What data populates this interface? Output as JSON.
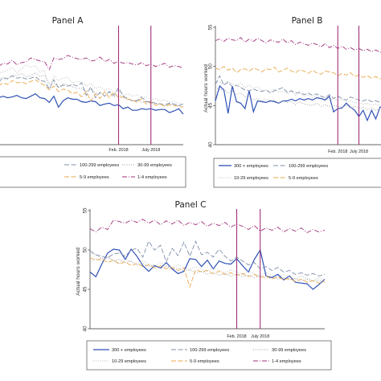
{
  "chart_data": [
    {
      "type": "line",
      "title": "Panel A",
      "ylabel": "",
      "ylim": [
        40,
        55
      ],
      "x_count": 41,
      "vlines": [
        {
          "x": 26,
          "label": "Feb. 2018"
        },
        {
          "x": 33,
          "label": "July 2018"
        }
      ],
      "series": [
        {
          "name": "300 + employees",
          "color": "#2d4fb5",
          "dash": "solid",
          "values": [
            46.0,
            46.2,
            46.0,
            46.1,
            46.3,
            46.0,
            45.9,
            46.2,
            46.5,
            46.0,
            45.9,
            45.4,
            46.2,
            44.8,
            45.6,
            46.0,
            45.8,
            45.8,
            45.5,
            45.4,
            45.6,
            45.5,
            45.0,
            45.2,
            45.3,
            45.0,
            45.1,
            44.6,
            44.8,
            44.4,
            44.4,
            44.6,
            44.5,
            44.6,
            44.4,
            44.5,
            44.5,
            44.1,
            44.3,
            44.6,
            43.9
          ]
        },
        {
          "name": "100-299 employees",
          "color": "#7f8fa8",
          "dash": "longdash",
          "values": [
            48.0,
            48.5,
            48.4,
            48.8,
            48.5,
            48.6,
            48.4,
            48.5,
            48.7,
            48.2,
            48.1,
            47.1,
            48.3,
            47.3,
            47.6,
            47.5,
            47.7,
            47.5,
            47.9,
            46.3,
            47.4,
            46.0,
            46.7,
            46.2,
            46.8,
            46.3,
            47.3,
            46.2,
            45.9,
            45.6,
            45.6,
            46.1,
            45.5,
            45.5,
            45.3,
            45.2,
            45.1,
            45.3,
            45.2,
            45.0,
            45.2
          ]
        },
        {
          "name": "30-99 employees",
          "color": "#999999",
          "dash": "dot",
          "values": [
            48.4,
            48.6,
            48.5,
            48.8,
            48.9,
            49.1,
            48.7,
            48.8,
            49.2,
            48.7,
            48.9,
            47.8,
            47.9,
            47.3,
            47.8,
            47.6,
            47.4,
            47.2,
            47.2,
            46.8,
            47.1,
            46.6,
            46.5,
            46.5,
            46.7,
            46.1,
            46.4,
            46.0,
            45.8,
            45.6,
            45.7,
            45.4,
            45.5,
            45.3,
            45.2,
            45.3,
            45.0,
            45.2,
            45.1,
            45.0,
            44.8
          ]
        },
        {
          "name": "10-29 employees",
          "color": "#b8b8b8",
          "dash": "dot",
          "values": [
            49.1,
            49.3,
            49.5,
            49.9,
            49.2,
            49.7,
            50.2,
            49.9,
            50.1,
            49.3,
            49.5,
            47.0,
            48.8,
            48.2,
            48.5,
            48.6,
            47.9,
            48.1,
            48.0,
            47.5,
            47.8,
            47.2,
            47.4,
            47.0,
            47.2,
            46.6,
            46.9,
            46.3,
            46.5,
            46.2,
            46.4,
            46.0,
            46.1,
            45.8,
            45.9,
            45.6,
            45.7,
            45.4,
            45.5,
            45.3,
            45.2
          ]
        },
        {
          "name": "5-9 employees",
          "color": "#e8a84d",
          "dash": "longdash",
          "values": [
            47.5,
            47.9,
            47.7,
            48.2,
            47.9,
            48.0,
            47.8,
            48.1,
            48.3,
            47.9,
            47.6,
            47.0,
            47.5,
            46.8,
            47.1,
            47.0,
            46.5,
            46.7,
            46.1,
            46.8,
            45.6,
            46.5,
            45.9,
            46.8,
            46.0,
            46.7,
            46.0,
            46.1,
            45.8,
            45.7,
            45.4,
            45.9,
            45.2,
            45.5,
            45.0,
            45.2,
            44.9,
            45.1,
            45.0,
            44.9,
            44.8
          ]
        },
        {
          "name": "1-4 employees",
          "color": "#a0307a",
          "dash": "dashdot",
          "values": [
            50.0,
            50.4,
            50.3,
            50.8,
            50.2,
            50.5,
            50.6,
            51.1,
            50.9,
            50.7,
            50.6,
            49.6,
            51.1,
            50.9,
            51.0,
            51.4,
            51.2,
            51.0,
            50.9,
            51.1,
            50.7,
            50.8,
            51.2,
            50.6,
            50.9,
            50.4,
            50.7,
            50.4,
            50.5,
            50.3,
            50.2,
            50.5,
            50.1,
            50.3,
            50.0,
            50.2,
            50.4,
            49.9,
            50.1,
            50.0,
            49.8
          ]
        }
      ]
    },
    {
      "type": "line",
      "title": "Panel B",
      "ylabel": "Actual hours worked",
      "ylim": [
        40,
        55
      ],
      "yticks": [
        40,
        45,
        50,
        55
      ],
      "x_count": 41,
      "vlines": [
        {
          "x": 29,
          "label": "Feb. 2018"
        },
        {
          "x": 34,
          "label": "July 2018"
        }
      ],
      "series": [
        {
          "name": "300 + employees",
          "color": "#2d4fb5",
          "dash": "solid",
          "values": [
            45.6,
            47.5,
            47.0,
            44.0,
            47.5,
            45.5,
            45.3,
            44.6,
            46.9,
            44.2,
            45.6,
            45.5,
            45.4,
            45.6,
            45.5,
            45.3,
            45.6,
            45.6,
            45.8,
            45.6,
            45.9,
            45.7,
            45.9,
            45.7,
            46.0,
            45.9,
            45.7,
            46.2,
            44.2,
            44.6,
            44.7,
            45.3,
            44.8,
            44.4,
            43.6,
            44.4,
            43.1,
            44.4,
            43.3,
            44.8,
            44.8
          ]
        },
        {
          "name": "100-299 employees",
          "color": "#7f8fa8",
          "dash": "longdash",
          "values": [
            47.7,
            48.8,
            47.6,
            48.0,
            47.4,
            47.6,
            47.3,
            47.0,
            46.9,
            47.1,
            46.9,
            46.8,
            47.0,
            46.6,
            46.9,
            47.1,
            47.3,
            46.7,
            46.9,
            46.6,
            46.7,
            46.4,
            46.6,
            46.3,
            46.5,
            46.2,
            46.0,
            46.4,
            45.9,
            46.2,
            45.9,
            45.7,
            46.1,
            45.9,
            45.7,
            45.6,
            45.8,
            45.5,
            45.6,
            45.4,
            45.5
          ]
        },
        {
          "name": "30-99 employees",
          "color": "#999999",
          "dash": "dot",
          "values": [
            47.4,
            47.0,
            47.1,
            46.6,
            46.9,
            46.4,
            46.6,
            46.1,
            46.2,
            45.7,
            45.9,
            45.6,
            45.8,
            45.6,
            45.7,
            45.3,
            45.6,
            45.4,
            45.5,
            45.1,
            45.5,
            45.2,
            45.1,
            45.0,
            45.3,
            44.9,
            45.1,
            44.9,
            45.0,
            44.9,
            44.8,
            45.0,
            44.7,
            44.9,
            44.6,
            44.8,
            44.5,
            44.7,
            44.4,
            44.6,
            44.4
          ]
        },
        {
          "name": "10-29 employees",
          "color": "#b8b8b8",
          "dash": "dot",
          "values": [
            48.2,
            48.0,
            47.7,
            48.1,
            47.8,
            47.5,
            47.9,
            47.3,
            47.6,
            47.2,
            47.4,
            46.9,
            47.0,
            46.8,
            47.1,
            46.7,
            46.9,
            46.5,
            46.8,
            46.3,
            46.6,
            46.2,
            46.4,
            46.0,
            46.3,
            45.9,
            46.1,
            45.7,
            45.9,
            45.6,
            45.8,
            45.5,
            45.6,
            45.3,
            45.4,
            45.2,
            45.3,
            45.0,
            45.2,
            44.9,
            45.1
          ]
        },
        {
          "name": "5-9 employees",
          "color": "#e8a84d",
          "dash": "longdash",
          "values": [
            49.8,
            49.6,
            50.0,
            49.5,
            49.8,
            49.2,
            49.6,
            49.7,
            49.4,
            49.8,
            49.6,
            49.3,
            49.7,
            49.6,
            49.9,
            49.3,
            49.5,
            49.8,
            49.4,
            49.2,
            49.6,
            49.4,
            49.1,
            49.5,
            49.2,
            49.0,
            49.4,
            49.3,
            49.2,
            48.8,
            49.1,
            48.9,
            49.2,
            48.7,
            48.9,
            48.6,
            48.8,
            48.5,
            48.7,
            48.4,
            48.6
          ]
        },
        {
          "name": "1-4 employees",
          "color": "#a0307a",
          "dash": "dashdot",
          "values": [
            53.3,
            53.5,
            53.2,
            53.6,
            53.4,
            53.3,
            53.7,
            53.1,
            53.5,
            53.2,
            53.6,
            53.3,
            53.0,
            53.4,
            53.2,
            53.1,
            53.5,
            53.0,
            53.3,
            52.8,
            53.1,
            52.9,
            52.7,
            53.0,
            52.8,
            52.5,
            52.9,
            52.4,
            52.7,
            52.3,
            52.6,
            52.2,
            52.4,
            52.1,
            52.3,
            52.0,
            52.2,
            51.9,
            52.1,
            51.8,
            52.0
          ]
        }
      ]
    },
    {
      "type": "line",
      "title": "Panel C",
      "ylabel": "Actual hours worked",
      "ylim": [
        40,
        55
      ],
      "yticks": [
        40,
        45,
        50,
        55
      ],
      "x_count": 41,
      "vlines": [
        {
          "x": 25,
          "label": "Feb. 2018"
        },
        {
          "x": 29,
          "label": "July 2018"
        }
      ],
      "series": [
        {
          "name": "300 + employees",
          "color": "#2d4fb5",
          "dash": "solid",
          "values": [
            47.2,
            46.6,
            48.2,
            49.6,
            50.1,
            50.0,
            48.8,
            50.1,
            49.2,
            48.0,
            47.3,
            48.0,
            47.7,
            48.4,
            47.6,
            47.0,
            47.3,
            48.9,
            48.8,
            47.9,
            48.7,
            47.6,
            48.6,
            48.3,
            48.2,
            48.9,
            48.0,
            47.2,
            48.8,
            50.0,
            46.7,
            46.5,
            46.9,
            46.2,
            46.7,
            45.9,
            45.8,
            45.7,
            45.0,
            45.6,
            46.3
          ]
        },
        {
          "name": "100-299 employees",
          "color": "#7f8fa8",
          "dash": "longdash",
          "values": [
            49.9,
            49.4,
            49.2,
            49.0,
            49.5,
            49.6,
            49.2,
            50.0,
            50.2,
            49.1,
            51.1,
            50.0,
            50.6,
            48.5,
            50.2,
            49.3,
            51.0,
            49.2,
            51.1,
            49.4,
            49.7,
            49.1,
            50.1,
            49.2,
            48.6,
            49.1,
            48.6,
            48.1,
            48.4,
            47.6,
            47.9,
            47.4,
            47.8,
            47.2,
            47.4,
            46.9,
            47.1,
            46.8,
            47.0,
            46.7,
            46.9
          ]
        },
        {
          "name": "30-99 employees",
          "color": "#999999",
          "dash": "dot",
          "values": [
            49.6,
            49.4,
            48.9,
            49.1,
            48.6,
            48.8,
            48.4,
            48.6,
            48.1,
            48.3,
            47.9,
            48.1,
            47.7,
            47.9,
            47.5,
            47.7,
            47.3,
            47.5,
            47.1,
            47.3,
            46.9,
            47.1,
            46.8,
            47.0,
            46.7,
            46.9,
            46.6,
            46.8,
            46.5,
            46.7,
            46.4,
            46.6,
            46.3,
            46.5,
            46.2,
            46.4,
            46.1,
            46.3,
            46.0,
            46.2,
            45.9
          ]
        },
        {
          "name": "10-29 employees",
          "color": "#b8b8b8",
          "dash": "dot",
          "values": [
            48.4,
            48.9,
            48.6,
            49.1,
            48.7,
            48.3,
            48.9,
            48.5,
            48.1,
            48.6,
            48.2,
            47.9,
            48.4,
            48.0,
            47.7,
            48.1,
            47.8,
            47.5,
            47.9,
            47.6,
            47.3,
            47.7,
            47.4,
            47.1,
            47.5,
            47.2,
            46.9,
            47.3,
            47.0,
            46.7,
            47.1,
            46.8,
            46.5,
            46.9,
            46.6,
            46.3,
            46.7,
            46.4,
            46.1,
            46.5,
            46.2
          ]
        },
        {
          "name": "5-9 employees",
          "color": "#e8a84d",
          "dash": "longdash",
          "values": [
            49.0,
            48.7,
            48.9,
            48.4,
            48.7,
            48.2,
            48.5,
            48.0,
            48.3,
            47.9,
            48.1,
            47.7,
            48.0,
            47.6,
            47.8,
            47.4,
            47.7,
            45.3,
            47.5,
            47.2,
            47.4,
            47.0,
            47.3,
            46.9,
            47.1,
            46.8,
            47.0,
            46.6,
            46.9,
            46.5,
            46.7,
            46.3,
            46.6,
            46.2,
            46.4,
            46.0,
            46.3,
            45.9,
            46.1,
            45.8,
            46.0
          ]
        },
        {
          "name": "1-4 employees",
          "color": "#a0307a",
          "dash": "dashdot",
          "values": [
            52.7,
            52.3,
            52.9,
            52.6,
            53.8,
            53.6,
            53.4,
            53.8,
            53.5,
            53.9,
            53.4,
            53.8,
            53.2,
            53.7,
            53.3,
            53.8,
            53.1,
            53.5,
            53.2,
            53.6,
            53.0,
            53.4,
            53.1,
            53.5,
            52.9,
            53.3,
            53.0,
            52.6,
            53.1,
            52.4,
            52.8,
            52.5,
            52.9,
            52.3,
            52.7,
            52.4,
            52.8,
            52.2,
            52.6,
            52.3,
            52.5
          ]
        }
      ]
    }
  ]
}
